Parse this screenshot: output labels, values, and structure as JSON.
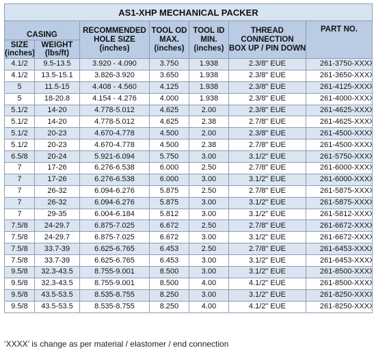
{
  "title": "AS1-XHP MECHANICAL PACKER",
  "headers": {
    "casing": "CASING",
    "size": [
      "SIZE",
      "(inches)"
    ],
    "weight": [
      "WEIGHT",
      "(lbs/ft)"
    ],
    "hole": [
      "RECOMMENDED",
      "HOLE SIZE",
      "(inches)"
    ],
    "tool_od": [
      "TOOL OD",
      "MAX.",
      "(inches)"
    ],
    "tool_id": [
      "TOOL ID",
      "MIN.",
      "(inches)"
    ],
    "thread": [
      "THREAD",
      "CONNECTION",
      "BOX UP / PIN DOWN"
    ],
    "part": "PART NO."
  },
  "rows": [
    [
      "4.1/2",
      "9.5-13.5",
      "3.920 - 4.090",
      "3.750",
      "1.938",
      "2.3/8\" EUE",
      "261-3750-XXXX"
    ],
    [
      "4.1/2",
      "13.5-15.1",
      "3.826-3.920",
      "3.650",
      "1.938",
      "2.3/8\" EUE",
      "261-3650-XXXX"
    ],
    [
      "5",
      "11.5-15",
      "4.408 - 4.560",
      "4.125",
      "1.938",
      "2.3/8\" EUE",
      "261-4125-XXXX"
    ],
    [
      "5",
      "18-20.8",
      "4.154 - 4.276",
      "4.000",
      "1.938",
      "2.3/8\" EUE",
      "261-4000-XXXX"
    ],
    [
      "5.1/2",
      "14-20",
      "4.778-5.012",
      "4.625",
      "2.00",
      "2.3/8\" EUE",
      "261-4625-XXXX"
    ],
    [
      "5.1/2",
      "14-20",
      "4.778-5.012",
      "4.625",
      "2.38",
      "2.7/8\" EUE",
      "261-4625-XXXX"
    ],
    [
      "5.1/2",
      "20-23",
      "4.670-4.778",
      "4.500",
      "2.00",
      "2.3/8\" EUE",
      "261-4500-XXXX"
    ],
    [
      "5.1/2",
      "20-23",
      "4.670-4.778",
      "4.500",
      "2.38",
      "2.7/8\" EUE",
      "261-4500-XXXX"
    ],
    [
      "6.5/8",
      "20-24",
      "5.921-6.094",
      "5.750",
      "3.00",
      "3.1/2\" EUE",
      "261-5750-XXXX"
    ],
    [
      "7",
      "17-26",
      "6.276-6.538",
      "6.000",
      "2.50",
      "2.7/8\" EUE",
      "261-6000-XXXX"
    ],
    [
      "7",
      "17-26",
      "6.276-6.538",
      "6.000",
      "3.00",
      "3.1/2\" EUE",
      "261-6000-XXXX"
    ],
    [
      "7",
      "26-32",
      "6.094-6.276",
      "5.875",
      "2.50",
      "2.7/8\" EUE",
      "261-5875-XXXX"
    ],
    [
      "7",
      "26-32",
      "6.094-6.276",
      "5.875",
      "3.00",
      "3.1/2\" EUE",
      "261-5875-XXXX"
    ],
    [
      "7",
      "29-35",
      "6.004-6.184",
      "5.812",
      "3.00",
      "3.1/2\" EUE",
      "261-5812-XXXX"
    ],
    [
      "7.5/8",
      "24-29.7",
      "6.875-7.025",
      "6.672",
      "2.50",
      "2.7/8\" EUE",
      "261-6672-XXXX"
    ],
    [
      "7.5/8",
      "24-29.7",
      "6.875-7.025",
      "6.672",
      "3.00",
      "3.1/2\" EUE",
      "261-6672-XXXX"
    ],
    [
      "7.5/8",
      "33.7-39",
      "6.625-6.765",
      "6.453",
      "2.50",
      "2.7/8\" EUE",
      "261-6453-XXXX"
    ],
    [
      "7.5/8",
      "33.7-39",
      "6.625-6.765",
      "6.453",
      "3.00",
      "3.1/2\" EUE",
      "261-6453-XXXX"
    ],
    [
      "9.5/8",
      "32.3-43.5",
      "8.755-9.001",
      "8.500",
      "3.00",
      "3.1/2\" EUE",
      "261-8500-XXXX"
    ],
    [
      "9.5/8",
      "32.3-43.5",
      "8.755-9.001",
      "8.500",
      "4.00",
      "4.1/2\" EUE",
      "261-8500-XXXX"
    ],
    [
      "9.5/8",
      "43.5-53.5",
      "8.535-8.755",
      "8.250",
      "3.00",
      "3.1/2\" EUE",
      "261-8250-XXXX"
    ],
    [
      "9.5/8",
      "43.5-53.5",
      "8.535-8.755",
      "8.250",
      "4.00",
      "4.1/2\" EUE",
      "261-8250-XXXX"
    ]
  ],
  "note": "‘XXXX’ is change as per material / elastomer / end connection",
  "colors": {
    "header_bg": "#b9cce4",
    "title_bg": "#d7e3f1",
    "stripe": "#dbe5f1",
    "border": "#8a9bb3"
  }
}
